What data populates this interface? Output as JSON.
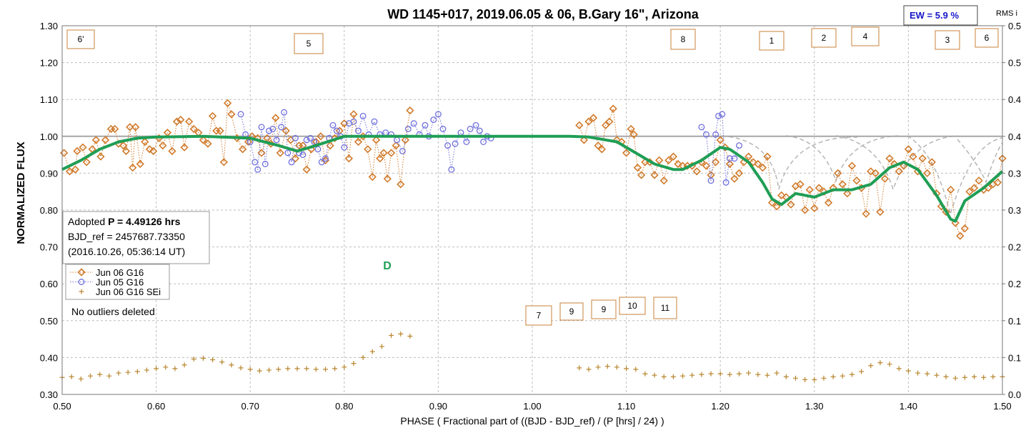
{
  "chart_data": {
    "type": "scatter",
    "title": "WD 1145+017, 2019.06.05 & 06, B.Gary 16\", Arizona",
    "xlabel": "PHASE ( Fractional part of ((BJD - BJD_ref) / (P [hrs] / 24) )",
    "ylabel": "NORMALIZED FLUX",
    "y2label": "RMS i",
    "xlim": [
      0.5,
      1.5
    ],
    "ylim": [
      0.3,
      1.3
    ],
    "y2lim": [
      0,
      0.5
    ],
    "xticks": [
      {
        "value": 0.5,
        "label": "0.50"
      },
      {
        "value": 0.6,
        "label": "0.60"
      },
      {
        "value": 0.7,
        "label": "0.70"
      },
      {
        "value": 0.8,
        "label": "0.80"
      },
      {
        "value": 0.9,
        "label": "0.90"
      },
      {
        "value": 1.0,
        "label": "1.00"
      },
      {
        "value": 1.1,
        "label": "1.10"
      },
      {
        "value": 1.2,
        "label": "1.20"
      },
      {
        "value": 1.3,
        "label": "1.30"
      },
      {
        "value": 1.4,
        "label": "1.40"
      },
      {
        "value": 1.5,
        "label": "1.50"
      }
    ],
    "yticks": [
      {
        "value": 0.3,
        "label": "0.30"
      },
      {
        "value": 0.4,
        "label": "0.40"
      },
      {
        "value": 0.5,
        "label": "0.50"
      },
      {
        "value": 0.6,
        "label": "0.60"
      },
      {
        "value": 0.7,
        "label": "0.70"
      },
      {
        "value": 0.8,
        "label": "0.80"
      },
      {
        "value": 0.9,
        "label": "0.90"
      },
      {
        "value": 1.0,
        "label": "1.00"
      },
      {
        "value": 1.1,
        "label": "1.10"
      },
      {
        "value": 1.2,
        "label": "1.20"
      },
      {
        "value": 1.3,
        "label": "1.30"
      }
    ],
    "y2ticks": [
      {
        "value": 0,
        "label": "0.0"
      },
      {
        "value": 0.05,
        "label": "0.1"
      },
      {
        "value": 0.1,
        "label": "0.1"
      },
      {
        "value": 0.15,
        "label": "0.2"
      },
      {
        "value": 0.2,
        "label": "0.2"
      },
      {
        "value": 0.25,
        "label": "0.3"
      },
      {
        "value": 0.3,
        "label": "0.3"
      },
      {
        "value": 0.35,
        "label": "0.4"
      },
      {
        "value": 0.4,
        "label": "0.4"
      },
      {
        "value": 0.45,
        "label": "0.5"
      },
      {
        "value": 0.5,
        "label": "0.5"
      }
    ],
    "grid": true,
    "reference_line": 1.0,
    "series": [
      {
        "name": "Jun 06 G16",
        "color": "#d07a2a",
        "marker": "diamond",
        "x": [
          0.502,
          0.508,
          0.514,
          0.516,
          0.522,
          0.526,
          0.532,
          0.536,
          0.541,
          0.546,
          0.552,
          0.556,
          0.56,
          0.565,
          0.568,
          0.572,
          0.575,
          0.578,
          0.583,
          0.588,
          0.593,
          0.597,
          0.603,
          0.607,
          0.612,
          0.617,
          0.622,
          0.626,
          0.63,
          0.635,
          0.64,
          0.645,
          0.65,
          0.655,
          0.66,
          0.664,
          0.668,
          0.672,
          0.676,
          0.68,
          0.686,
          0.692,
          0.698,
          0.702,
          0.708,
          0.712,
          0.718,
          0.722,
          0.727,
          0.732,
          0.738,
          0.743,
          0.748,
          0.752,
          0.756,
          0.76,
          0.765,
          0.77,
          0.775,
          0.78,
          0.785,
          0.79,
          0.795,
          0.8,
          0.805,
          0.81,
          0.815,
          0.82,
          0.825,
          0.83,
          0.834,
          0.838,
          0.842,
          0.846,
          0.85,
          0.855,
          0.86,
          0.865,
          0.87,
          null,
          1.05,
          1.055,
          1.06,
          1.065,
          1.07,
          1.074,
          1.078,
          1.082,
          1.086,
          1.09,
          1.095,
          1.1,
          1.105,
          1.108,
          1.112,
          1.116,
          1.12,
          1.125,
          1.13,
          1.135,
          1.14,
          1.145,
          1.15,
          1.155,
          1.16,
          1.165,
          1.17,
          1.175,
          1.18,
          1.185,
          1.19,
          1.195,
          1.2,
          1.205,
          1.21,
          1.215,
          1.22,
          1.225,
          1.23,
          1.235,
          1.24,
          1.245,
          1.25,
          1.255,
          1.26,
          1.265,
          1.27,
          1.275,
          1.28,
          1.285,
          1.29,
          1.295,
          1.3,
          1.305,
          1.31,
          1.315,
          1.32,
          1.325,
          1.33,
          1.335,
          1.34,
          1.345,
          1.35,
          1.355,
          1.36,
          1.365,
          1.37,
          1.375,
          1.38,
          1.385,
          1.39,
          1.395,
          1.4,
          1.405,
          1.41,
          1.415,
          1.42,
          1.425,
          1.43,
          1.435,
          1.44,
          1.445,
          1.45,
          1.455,
          1.46,
          1.465,
          1.47,
          1.475,
          1.48,
          1.485,
          1.49,
          1.495,
          1.5
        ],
        "values": [
          0.955,
          0.905,
          0.91,
          0.96,
          0.97,
          0.93,
          0.965,
          0.99,
          0.945,
          0.99,
          1.02,
          1.02,
          0.98,
          0.975,
          0.96,
          1.025,
          0.915,
          1.025,
          0.925,
          0.985,
          0.965,
          0.96,
          0.995,
          0.975,
          1.01,
          0.96,
          1.04,
          1.045,
          0.97,
          1.04,
          1.02,
          1.01,
          0.99,
          0.98,
          1.055,
          1.015,
          1.015,
          0.93,
          1.09,
          1.06,
          0.995,
          0.965,
          0.985,
          1.0,
          0.995,
          0.955,
          0.995,
          0.98,
          1.05,
          0.955,
          1.015,
          0.99,
          0.94,
          0.975,
          0.975,
          0.91,
          0.965,
          0.985,
          1.0,
          0.935,
          0.975,
          0.995,
          1.015,
          1.035,
          0.94,
          1.06,
          0.985,
          1.0,
          0.965,
          0.89,
          0.99,
          0.94,
          0.955,
          0.885,
          0.955,
          0.975,
          0.87,
          0.99,
          1.07,
          null,
          1.03,
          0.99,
          1.04,
          1.05,
          0.975,
          0.965,
          1.03,
          1.04,
          1.075,
          0.99,
          0.985,
          0.955,
          1.02,
          1.005,
          0.915,
          0.895,
          0.93,
          0.93,
          0.895,
          0.935,
          0.88,
          0.935,
          0.945,
          0.925,
          0.92,
          0.92,
          0.92,
          0.905,
          0.93,
          0.92,
          0.895,
          0.93,
          0.99,
          0.97,
          0.925,
          0.885,
          0.9,
          0.93,
          0.945,
          0.93,
          0.925,
          0.915,
          0.945,
          0.82,
          0.81,
          0.84,
          0.835,
          0.815,
          0.865,
          0.87,
          0.8,
          0.855,
          0.805,
          0.86,
          0.85,
          0.82,
          0.86,
          0.9,
          0.87,
          0.845,
          0.92,
          0.88,
          0.86,
          0.79,
          0.905,
          0.9,
          0.795,
          0.885,
          0.94,
          0.925,
          0.905,
          0.92,
          0.965,
          0.945,
          0.905,
          0.94,
          0.9,
          0.93,
          0.845,
          0.81,
          0.795,
          0.855,
          0.765,
          0.73,
          0.75,
          0.85,
          0.86,
          0.88,
          0.855,
          0.86,
          0.87,
          0.875,
          0.94
        ]
      },
      {
        "name": "Jun 05 G16",
        "color": "#6f6fdc",
        "marker": "circle",
        "x": [
          0.69,
          0.695,
          0.7,
          0.705,
          0.708,
          0.712,
          0.716,
          0.72,
          0.724,
          0.728,
          0.733,
          0.736,
          0.74,
          0.744,
          0.748,
          0.752,
          0.756,
          0.76,
          0.764,
          0.768,
          0.772,
          0.776,
          0.78,
          0.784,
          0.788,
          0.792,
          0.796,
          0.8,
          0.805,
          0.81,
          0.815,
          0.82,
          0.826,
          0.832,
          0.838,
          0.844,
          0.85,
          0.856,
          0.862,
          0.868,
          0.874,
          0.88,
          0.886,
          0.89,
          0.895,
          0.9,
          0.905,
          0.91,
          0.914,
          0.918,
          0.924,
          0.93,
          0.934,
          0.94,
          0.944,
          0.948,
          0.952,
          0.956,
          null,
          1.18,
          1.185,
          1.19,
          1.195,
          1.198,
          1.202,
          1.206,
          1.21,
          1.215,
          1.22
        ],
        "values": [
          1.06,
          1.005,
          0.985,
          0.93,
          0.91,
          1.025,
          0.925,
          1.015,
          1.02,
          0.99,
          1.025,
          1.065,
          0.955,
          0.93,
          0.995,
          0.955,
          0.95,
          0.99,
          0.995,
          0.985,
          0.965,
          0.93,
          0.94,
          0.995,
          1.03,
          1.015,
          1.0,
          0.97,
          1.035,
          1.04,
          1.015,
          1.055,
          1.005,
          1.04,
          1.005,
          1.01,
          1.005,
          0.99,
          0.96,
          1.02,
          1.035,
          1.005,
          1.03,
          1.0,
          1.045,
          1.06,
          1.02,
          0.975,
          0.91,
          0.98,
          1.01,
          0.985,
          1.02,
          1.03,
          1.015,
          0.985,
          1.0,
          0.995,
          null,
          1.025,
          1.005,
          0.88,
          1.005,
          1.055,
          1.06,
          0.875,
          0.94,
          0.94,
          0.975
        ]
      },
      {
        "name": "Jun 06 G16 SEi",
        "color": "#b8862e",
        "marker": "plus",
        "axis": "y2",
        "x": [
          0.5,
          0.51,
          0.52,
          0.53,
          0.54,
          0.55,
          0.56,
          0.57,
          0.58,
          0.59,
          0.6,
          0.61,
          0.62,
          0.63,
          0.64,
          0.65,
          0.66,
          0.67,
          0.68,
          0.69,
          0.7,
          0.71,
          0.72,
          0.73,
          0.74,
          0.75,
          0.76,
          0.77,
          0.78,
          0.79,
          0.8,
          0.81,
          0.82,
          0.83,
          0.84,
          0.85,
          0.86,
          0.87,
          null,
          1.05,
          1.06,
          1.07,
          1.08,
          1.09,
          1.1,
          1.11,
          1.12,
          1.13,
          1.14,
          1.15,
          1.16,
          1.17,
          1.18,
          1.19,
          1.2,
          1.21,
          1.22,
          1.23,
          1.24,
          1.25,
          1.26,
          1.27,
          1.28,
          1.29,
          1.3,
          1.31,
          1.32,
          1.33,
          1.34,
          1.35,
          1.36,
          1.37,
          1.38,
          1.39,
          1.4,
          1.41,
          1.42,
          1.43,
          1.44,
          1.45,
          1.46,
          1.47,
          1.48,
          1.49,
          1.5
        ],
        "values": [
          0.023,
          0.024,
          0.021,
          0.025,
          0.027,
          0.025,
          0.029,
          0.03,
          0.031,
          0.033,
          0.035,
          0.037,
          0.035,
          0.04,
          0.048,
          0.049,
          0.047,
          0.044,
          0.04,
          0.036,
          0.034,
          0.032,
          0.033,
          0.034,
          0.035,
          0.035,
          0.035,
          0.034,
          0.034,
          0.035,
          0.037,
          0.042,
          0.05,
          0.058,
          0.065,
          0.08,
          0.082,
          0.079,
          null,
          0.036,
          0.034,
          0.037,
          0.038,
          0.037,
          0.035,
          0.034,
          0.028,
          0.026,
          0.024,
          0.024,
          0.025,
          0.026,
          0.027,
          0.028,
          0.028,
          0.027,
          0.028,
          0.029,
          0.027,
          0.026,
          0.029,
          0.024,
          0.022,
          0.02,
          0.02,
          0.022,
          0.024,
          0.025,
          0.027,
          0.031,
          0.039,
          0.043,
          0.041,
          0.035,
          0.032,
          0.029,
          0.028,
          0.026,
          0.024,
          0.022,
          0.023,
          0.024,
          0.023,
          0.024,
          0.024
        ]
      },
      {
        "color": "#1f9e55",
        "marker": "none",
        "x": [
          0.5,
          0.52,
          0.54,
          0.56,
          0.58,
          0.6,
          0.65,
          0.7,
          0.73,
          0.75,
          0.77,
          0.8,
          1.0,
          1.04,
          1.06,
          1.09,
          1.11,
          1.13,
          1.15,
          1.16,
          1.18,
          1.2,
          1.21,
          1.23,
          1.245,
          1.255,
          1.265,
          1.28,
          1.3,
          1.32,
          1.34,
          1.36,
          1.38,
          1.395,
          1.41,
          1.43,
          1.445,
          1.45,
          1.46,
          1.48,
          1.5
        ],
        "values": [
          0.91,
          0.935,
          0.965,
          0.985,
          0.995,
          0.998,
          1.0,
          0.995,
          0.975,
          0.96,
          0.975,
          1.0,
          1.0,
          1.0,
          0.998,
          0.985,
          0.955,
          0.925,
          0.91,
          0.91,
          0.935,
          0.97,
          0.965,
          0.93,
          0.875,
          0.83,
          0.815,
          0.845,
          0.835,
          0.855,
          0.855,
          0.87,
          0.915,
          0.93,
          0.91,
          0.84,
          0.775,
          0.77,
          0.825,
          0.86,
          0.905
        ]
      }
    ],
    "annotations": [
      "6'",
      "5",
      "8",
      "1",
      "2",
      "4",
      "3",
      "6",
      "7",
      "9",
      "9",
      "10",
      "11",
      "D",
      "No outliers deleted"
    ],
    "info": {
      "prefix": "Adopted ",
      "period": "P = 4.49126 hrs",
      "bjd_ref": "BJD_ref = 2457687.73350",
      "date": "(2016.10.26, 05:36:14 UT)"
    },
    "ew": "EW =  5.9 %"
  }
}
